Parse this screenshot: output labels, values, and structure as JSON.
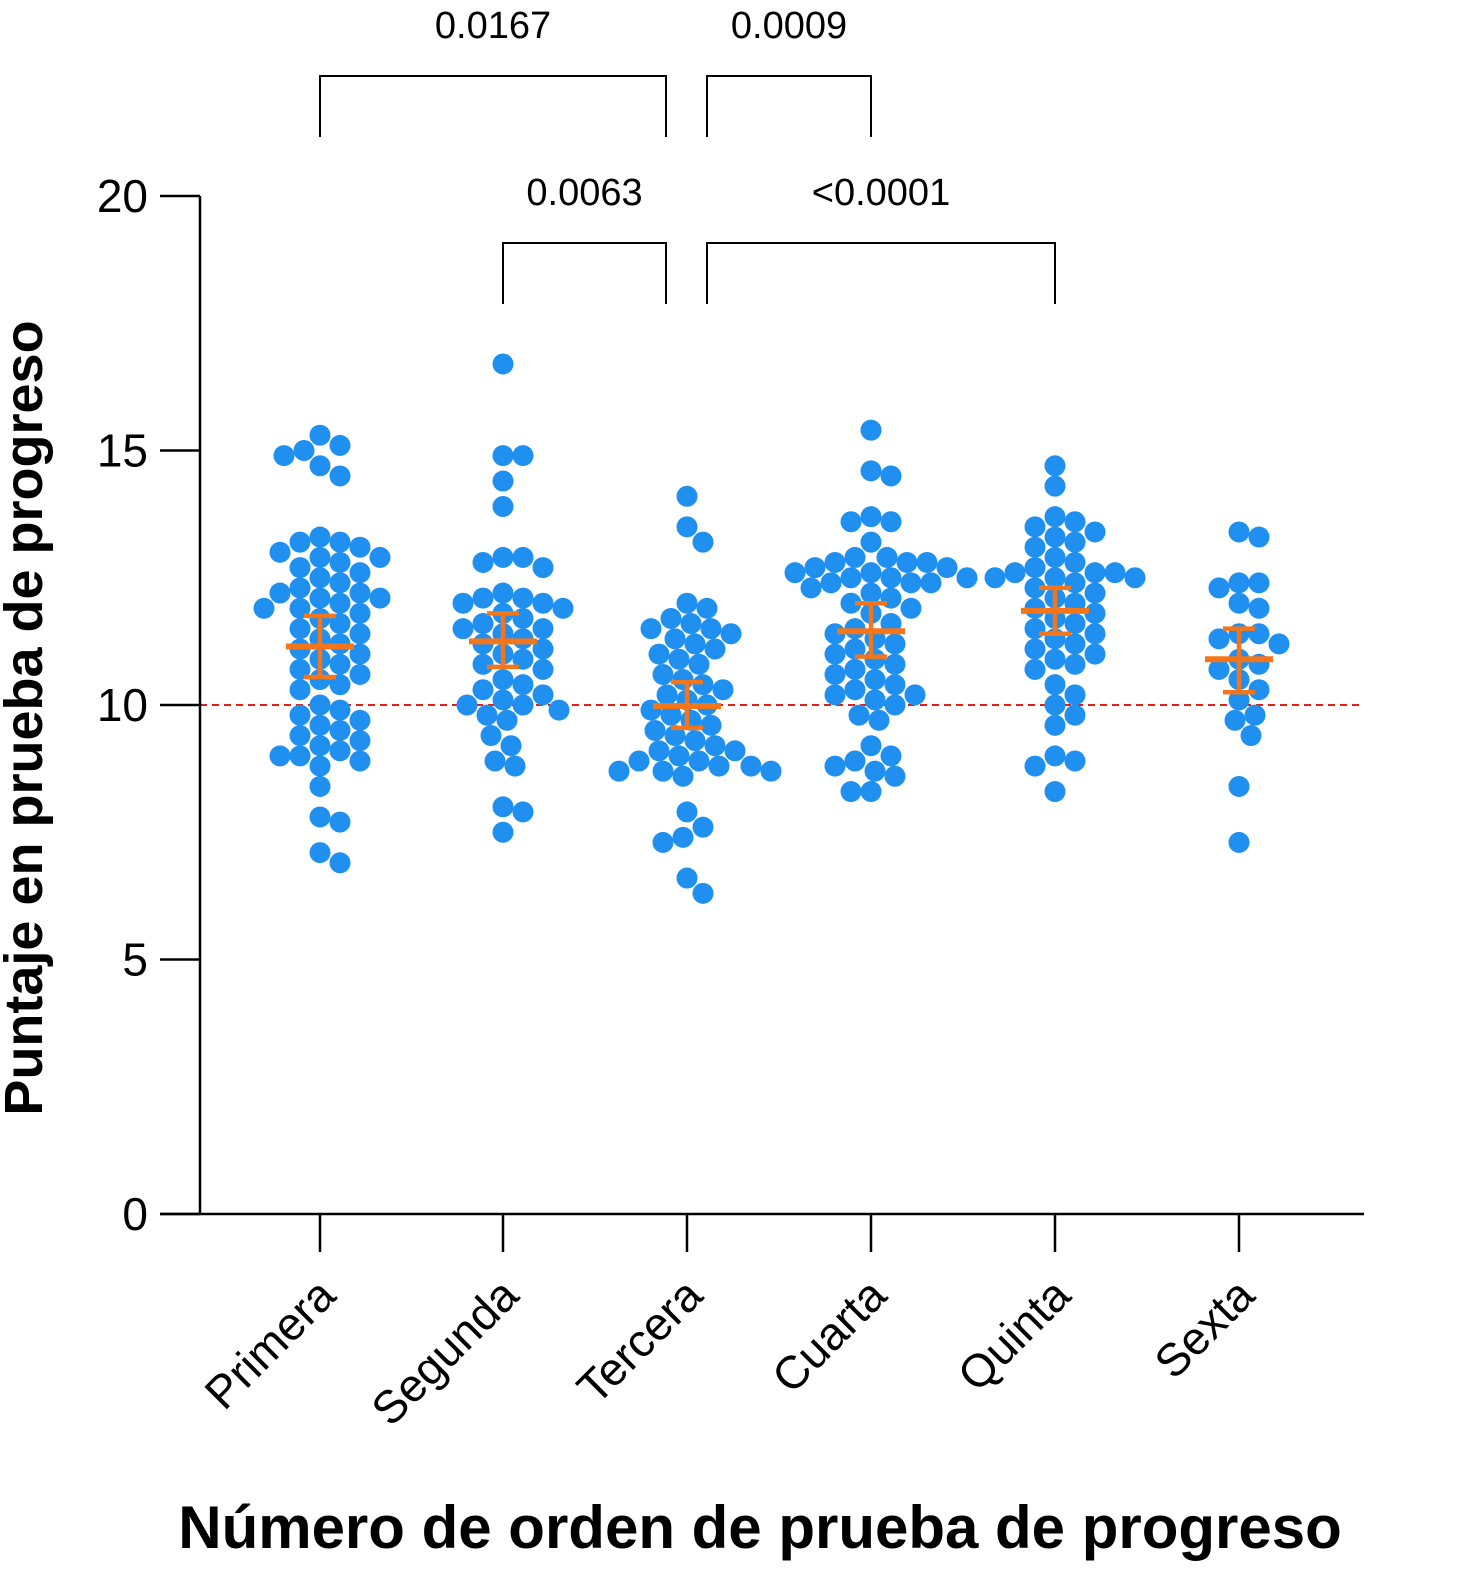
{
  "chart_data": {
    "type": "scatter",
    "subtype": "dot-plot-with-mean-and-error",
    "title": "",
    "xlabel": "Número de orden de prueba de progreso",
    "ylabel": "Puntaje en prueba de progreso",
    "ylim": [
      0,
      20
    ],
    "yticks": [
      0,
      5,
      10,
      15,
      20
    ],
    "categories": [
      "Primera",
      "Segunda",
      "Tercera",
      "Cuarta",
      "Quinta",
      "Sexta"
    ],
    "reference_line": {
      "y": 10,
      "color": "#e0201b"
    },
    "colors": {
      "points": "#1f8ff0",
      "summary": "#f5761a",
      "reference": "#e0201b"
    },
    "groups": [
      {
        "name": "Primera",
        "mean": 11.15,
        "err_low": 10.55,
        "err_high": 11.75,
        "values": [
          15.3,
          15.1,
          15.0,
          14.9,
          14.7,
          14.5,
          13.3,
          13.2,
          13.2,
          13.1,
          13.0,
          12.9,
          12.9,
          12.8,
          12.7,
          12.6,
          12.5,
          12.4,
          12.3,
          12.2,
          12.2,
          12.1,
          12.1,
          12.0,
          11.9,
          11.9,
          11.8,
          11.7,
          11.6,
          11.5,
          11.4,
          11.3,
          11.2,
          11.1,
          11.0,
          10.9,
          10.8,
          10.7,
          10.6,
          10.5,
          10.4,
          10.3,
          10.0,
          9.9,
          9.8,
          9.7,
          9.6,
          9.5,
          9.4,
          9.3,
          9.2,
          9.1,
          9.0,
          9.0,
          8.9,
          8.8,
          8.4,
          7.8,
          7.7,
          7.1,
          6.9
        ]
      },
      {
        "name": "Segunda",
        "mean": 11.25,
        "err_low": 10.75,
        "err_high": 11.8,
        "values": [
          16.7,
          14.9,
          14.9,
          14.4,
          13.9,
          12.9,
          12.9,
          12.8,
          12.7,
          12.2,
          12.1,
          12.1,
          12.0,
          12.0,
          11.9,
          11.8,
          11.7,
          11.6,
          11.5,
          11.5,
          11.4,
          11.3,
          11.2,
          11.1,
          11.0,
          10.9,
          10.8,
          10.7,
          10.5,
          10.4,
          10.3,
          10.2,
          10.1,
          10.0,
          10.0,
          9.9,
          9.8,
          9.7,
          9.4,
          9.2,
          8.9,
          8.8,
          8.0,
          7.9,
          7.5
        ]
      },
      {
        "name": "Tercera",
        "mean": 9.98,
        "err_low": 9.55,
        "err_high": 10.45,
        "values": [
          14.1,
          13.5,
          13.2,
          12.0,
          11.9,
          11.7,
          11.6,
          11.5,
          11.5,
          11.4,
          11.3,
          11.2,
          11.1,
          11.0,
          10.9,
          10.8,
          10.6,
          10.5,
          10.4,
          10.3,
          10.2,
          10.1,
          10.0,
          9.9,
          9.8,
          9.7,
          9.6,
          9.5,
          9.4,
          9.3,
          9.2,
          9.1,
          9.1,
          9.0,
          8.9,
          8.9,
          8.8,
          8.8,
          8.7,
          8.7,
          8.7,
          8.6,
          7.9,
          7.6,
          7.4,
          7.3,
          6.6,
          6.3
        ]
      },
      {
        "name": "Cuarta",
        "mean": 11.45,
        "err_low": 10.95,
        "err_high": 12.0,
        "values": [
          15.4,
          14.6,
          14.5,
          13.7,
          13.6,
          13.6,
          13.2,
          12.9,
          12.9,
          12.8,
          12.8,
          12.8,
          12.7,
          12.7,
          12.6,
          12.6,
          12.5,
          12.5,
          12.5,
          12.4,
          12.4,
          12.4,
          12.3,
          12.2,
          12.1,
          12.0,
          11.9,
          11.8,
          11.6,
          11.5,
          11.4,
          11.3,
          11.2,
          11.1,
          11.0,
          10.9,
          10.8,
          10.7,
          10.6,
          10.5,
          10.4,
          10.3,
          10.2,
          10.2,
          10.1,
          10.0,
          9.8,
          9.7,
          9.2,
          9.0,
          8.9,
          8.8,
          8.7,
          8.6,
          8.3,
          8.3
        ]
      },
      {
        "name": "Quinta",
        "mean": 11.85,
        "err_low": 11.4,
        "err_high": 12.3,
        "values": [
          14.7,
          14.3,
          13.7,
          13.6,
          13.5,
          13.4,
          13.3,
          13.2,
          13.1,
          12.9,
          12.8,
          12.7,
          12.6,
          12.6,
          12.6,
          12.5,
          12.5,
          12.5,
          12.4,
          12.3,
          12.2,
          12.1,
          12.0,
          11.9,
          11.8,
          11.7,
          11.6,
          11.5,
          11.4,
          11.3,
          11.2,
          11.1,
          11.0,
          10.9,
          10.8,
          10.7,
          10.4,
          10.2,
          10.0,
          9.8,
          9.6,
          9.0,
          8.9,
          8.8,
          8.3
        ]
      },
      {
        "name": "Sexta",
        "mean": 10.9,
        "err_low": 10.25,
        "err_high": 11.5,
        "values": [
          13.4,
          13.3,
          12.4,
          12.4,
          12.3,
          12.0,
          11.9,
          11.4,
          11.4,
          11.3,
          11.2,
          10.9,
          10.8,
          10.7,
          10.5,
          10.3,
          10.1,
          9.8,
          9.7,
          9.4,
          8.4,
          7.3
        ]
      }
    ],
    "comparisons": [
      {
        "from": "Primera",
        "to": "Tercera",
        "p": "0.0167",
        "level": 2
      },
      {
        "from": "Tercera",
        "to": "Cuarta",
        "p": "0.0009",
        "level": 2
      },
      {
        "from": "Segunda",
        "to": "Tercera",
        "p": "0.0063",
        "level": 1
      },
      {
        "from": "Tercera",
        "to": "Quinta",
        "p": "<0.0001",
        "level": 1
      }
    ]
  }
}
